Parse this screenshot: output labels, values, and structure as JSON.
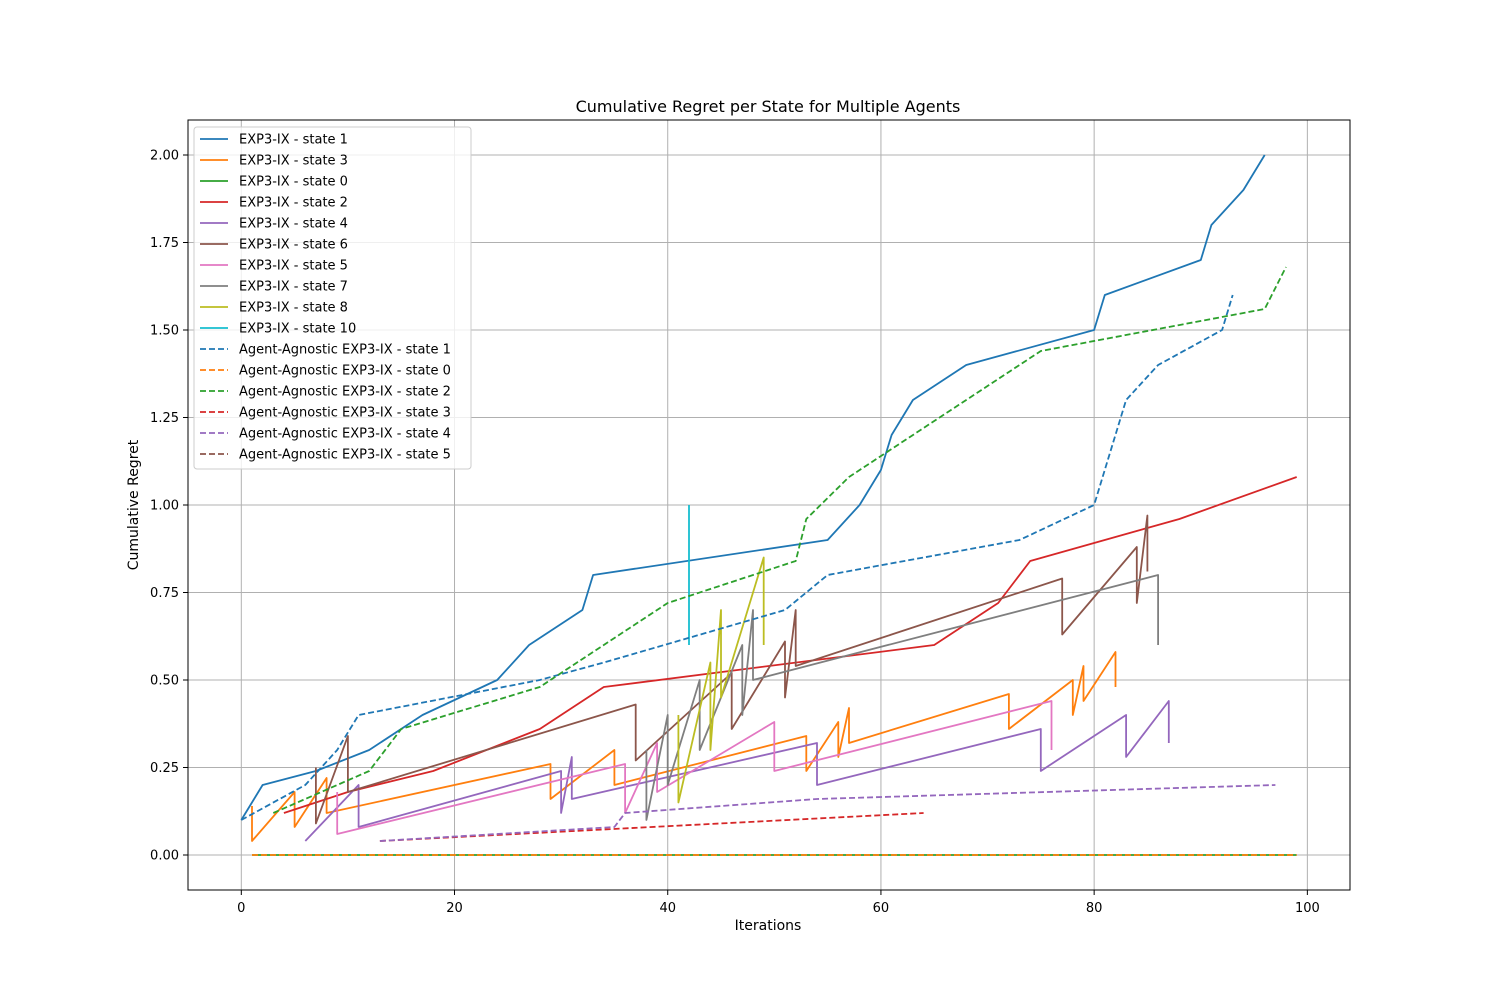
{
  "chart_data": {
    "type": "line",
    "title": "Cumulative Regret per State for Multiple Agents",
    "xlabel": "Iterations",
    "ylabel": "Cumulative Regret",
    "xlim": [
      -5,
      104
    ],
    "ylim": [
      -0.1,
      2.1
    ],
    "xticks": [
      0,
      20,
      40,
      60,
      80,
      100
    ],
    "yticks": [
      0.0,
      0.25,
      0.5,
      0.75,
      1.0,
      1.25,
      1.5,
      1.75,
      2.0
    ],
    "ytick_labels": [
      "0.00",
      "0.25",
      "0.50",
      "0.75",
      "1.00",
      "1.25",
      "1.50",
      "1.75",
      "2.00"
    ],
    "grid": true,
    "legend_position": "upper-left",
    "series": [
      {
        "name": "EXP3-IX - state 1",
        "color": "#1f77b4",
        "dash": "solid",
        "x": [
          0,
          2,
          7,
          12,
          17,
          24,
          27,
          32,
          33,
          55,
          58,
          60,
          61,
          63,
          68,
          80,
          81,
          90,
          91,
          94,
          96
        ],
        "y": [
          0.1,
          0.2,
          0.24,
          0.3,
          0.4,
          0.5,
          0.6,
          0.7,
          0.8,
          0.9,
          1.0,
          1.1,
          1.2,
          1.3,
          1.4,
          1.5,
          1.6,
          1.7,
          1.8,
          1.9,
          2.0
        ]
      },
      {
        "name": "EXP3-IX - state 3",
        "color": "#ff7f0e",
        "dash": "solid",
        "x": [
          1,
          1,
          5,
          5,
          8,
          8,
          29,
          29,
          35,
          35,
          53,
          53,
          56,
          56,
          57,
          57,
          72,
          72,
          78,
          78,
          79,
          79,
          82,
          82
        ],
        "y": [
          0.14,
          0.04,
          0.18,
          0.08,
          0.22,
          0.12,
          0.26,
          0.16,
          0.3,
          0.2,
          0.34,
          0.24,
          0.38,
          0.28,
          0.42,
          0.32,
          0.46,
          0.36,
          0.5,
          0.4,
          0.54,
          0.44,
          0.58,
          0.48
        ]
      },
      {
        "name": "EXP3-IX - state 0",
        "color": "#2ca02c",
        "dash": "solid",
        "x": [
          1,
          99
        ],
        "y": [
          0.0,
          0.0
        ]
      },
      {
        "name": "EXP3-IX - state 2",
        "color": "#d62728",
        "dash": "solid",
        "x": [
          4,
          10,
          18,
          28,
          34,
          65,
          71,
          74,
          88,
          99
        ],
        "y": [
          0.12,
          0.18,
          0.24,
          0.36,
          0.48,
          0.6,
          0.72,
          0.84,
          0.96,
          1.08
        ]
      },
      {
        "name": "EXP3-IX - state 4",
        "color": "#9467bd",
        "dash": "solid",
        "x": [
          6,
          6,
          11,
          11,
          30,
          30,
          31,
          31,
          54,
          54,
          75,
          75,
          83,
          83,
          87,
          87
        ],
        "y": [
          0.04,
          0.04,
          0.2,
          0.08,
          0.24,
          0.12,
          0.28,
          0.16,
          0.32,
          0.2,
          0.36,
          0.24,
          0.4,
          0.28,
          0.44,
          0.32
        ]
      },
      {
        "name": "EXP3-IX - state 6",
        "color": "#8c564b",
        "dash": "solid",
        "x": [
          7,
          7,
          10,
          10,
          37,
          37,
          46,
          46,
          51,
          51,
          52,
          52,
          77,
          77,
          84,
          84,
          85,
          85
        ],
        "y": [
          0.25,
          0.09,
          0.34,
          0.18,
          0.43,
          0.27,
          0.52,
          0.36,
          0.61,
          0.45,
          0.7,
          0.54,
          0.79,
          0.63,
          0.88,
          0.72,
          0.97,
          0.81
        ]
      },
      {
        "name": "EXP3-IX - state 5",
        "color": "#e377c2",
        "dash": "solid",
        "x": [
          9,
          9,
          36,
          36,
          39,
          39,
          50,
          50,
          76,
          76
        ],
        "y": [
          0.18,
          0.06,
          0.26,
          0.12,
          0.32,
          0.18,
          0.38,
          0.24,
          0.44,
          0.3
        ]
      },
      {
        "name": "EXP3-IX - state 7",
        "color": "#7f7f7f",
        "dash": "solid",
        "x": [
          38,
          38,
          40,
          40,
          43,
          43,
          47,
          47,
          48,
          48,
          86,
          86
        ],
        "y": [
          0.3,
          0.1,
          0.4,
          0.2,
          0.5,
          0.3,
          0.6,
          0.4,
          0.7,
          0.5,
          0.8,
          0.6
        ]
      },
      {
        "name": "EXP3-IX - state 8",
        "color": "#bcbd22",
        "dash": "solid",
        "x": [
          41,
          41,
          44,
          44,
          45,
          45,
          49,
          49
        ],
        "y": [
          0.4,
          0.15,
          0.55,
          0.3,
          0.7,
          0.45,
          0.85,
          0.6
        ]
      },
      {
        "name": "EXP3-IX - state 10",
        "color": "#17becf",
        "dash": "solid",
        "x": [
          42,
          42
        ],
        "y": [
          1.0,
          0.6
        ]
      },
      {
        "name": "Agent-Agnostic EXP3-IX - state 1",
        "color": "#1f77b4",
        "dash": "dashed",
        "x": [
          0,
          6,
          9,
          11,
          28,
          34,
          51,
          55,
          73,
          80,
          83,
          86,
          92,
          93
        ],
        "y": [
          0.1,
          0.2,
          0.3,
          0.4,
          0.5,
          0.55,
          0.7,
          0.8,
          0.9,
          1.0,
          1.3,
          1.4,
          1.5,
          1.6
        ]
      },
      {
        "name": "Agent-Agnostic EXP3-IX - state 0",
        "color": "#ff7f0e",
        "dash": "dashed",
        "x": [
          1,
          99
        ],
        "y": [
          0.0,
          0.0
        ]
      },
      {
        "name": "Agent-Agnostic EXP3-IX - state 2",
        "color": "#2ca02c",
        "dash": "dashed",
        "x": [
          3,
          12,
          15,
          28,
          40,
          52,
          53,
          57,
          75,
          96,
          98
        ],
        "y": [
          0.12,
          0.24,
          0.36,
          0.48,
          0.72,
          0.84,
          0.96,
          1.08,
          1.44,
          1.56,
          1.68
        ]
      },
      {
        "name": "Agent-Agnostic EXP3-IX - state 3",
        "color": "#d62728",
        "dash": "dashed",
        "x": [
          13,
          64
        ],
        "y": [
          0.04,
          0.12
        ]
      },
      {
        "name": "Agent-Agnostic EXP3-IX - state 4",
        "color": "#9467bd",
        "dash": "dashed",
        "x": [
          13,
          35,
          36,
          54,
          97
        ],
        "y": [
          0.04,
          0.08,
          0.12,
          0.16,
          0.2
        ]
      },
      {
        "name": "Agent-Agnostic EXP3-IX - state 5",
        "color": "#8c564b",
        "dash": "dashed",
        "x": [
          13
        ],
        "y": [
          0.04
        ]
      }
    ]
  }
}
